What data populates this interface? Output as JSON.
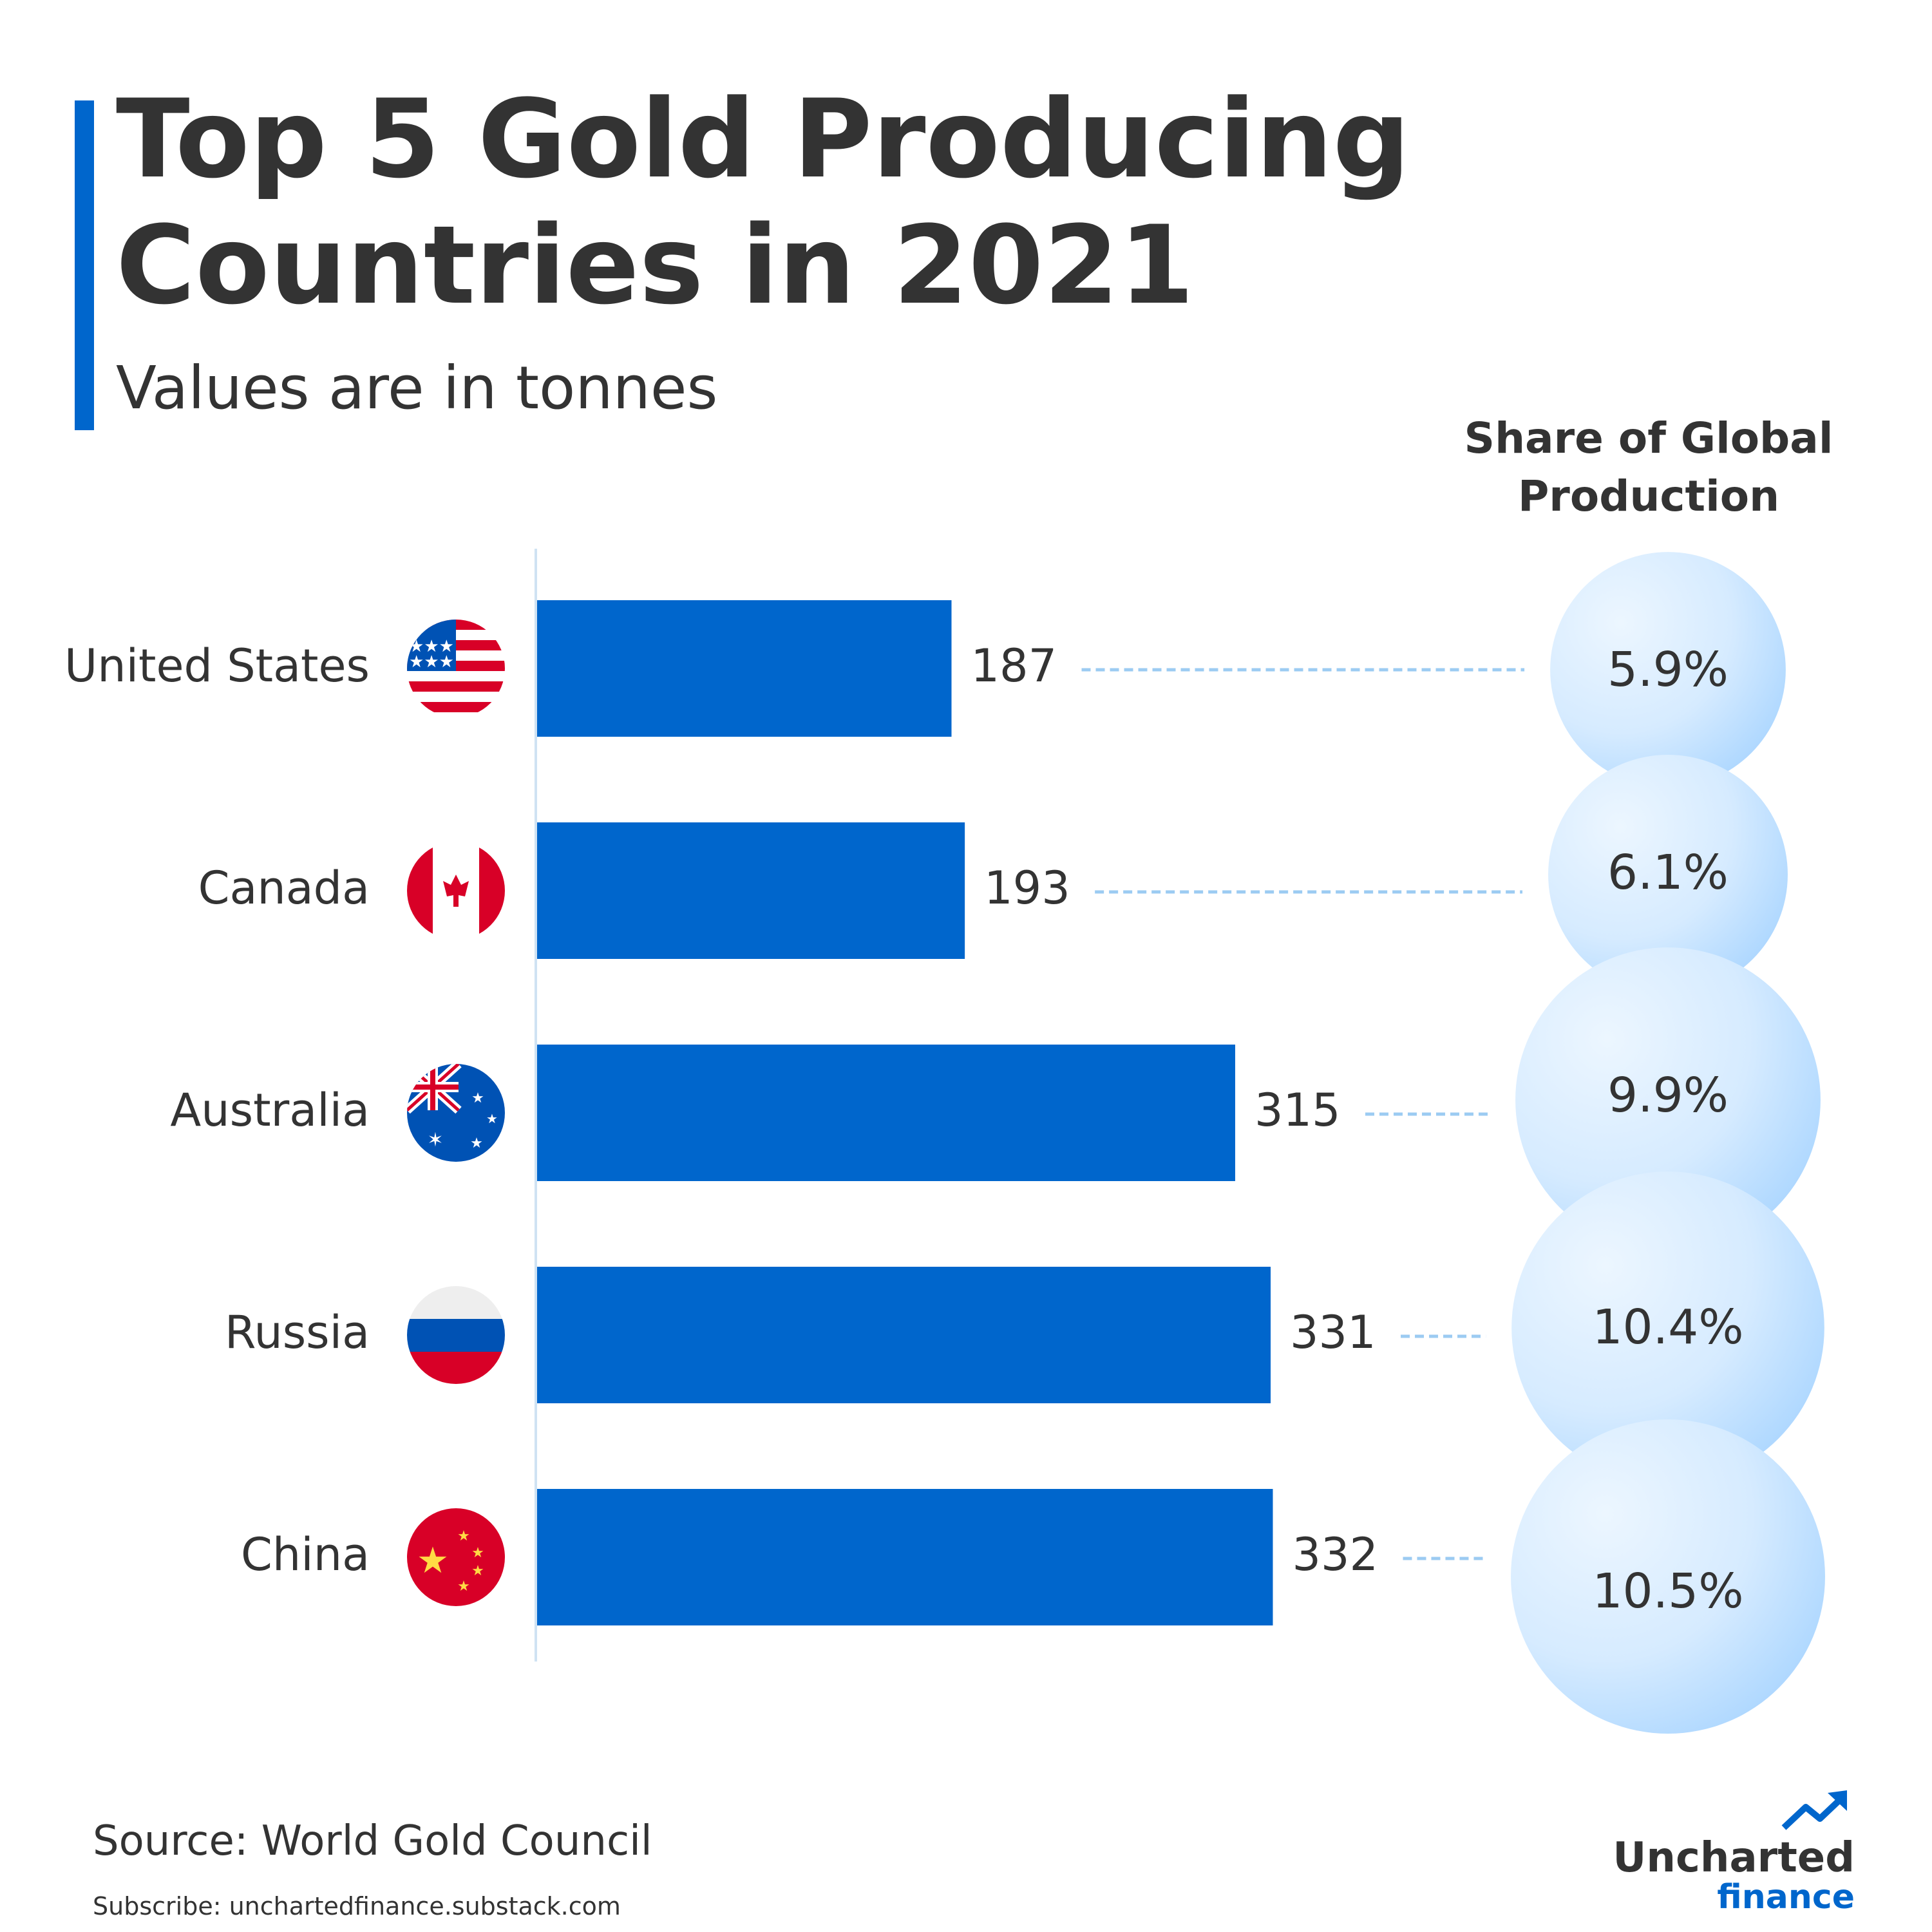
{
  "header": {
    "title": "Top 5 Gold Producing Countries in 2021",
    "subtitle": "Values are in tonnes"
  },
  "share_header": "Share of Global Production",
  "colors": {
    "accent": "#0066cc",
    "bar": "#0066cc",
    "text": "#333333",
    "axis": "#cfe2f3",
    "dash": "#9ccbf2",
    "bubble_light": "#ecf6ff",
    "bubble_dark": "#a7d4ff"
  },
  "chart_data": {
    "type": "bar",
    "orientation": "horizontal",
    "title": "Top 5 Gold Producing Countries in 2021",
    "subtitle": "Values are in tonnes",
    "categories": [
      "United States",
      "Canada",
      "Australia",
      "Russia",
      "China"
    ],
    "flag_icons": [
      "us-flag-icon",
      "canada-flag-icon",
      "australia-flag-icon",
      "russia-flag-icon",
      "china-flag-icon"
    ],
    "values": [
      187,
      193,
      315,
      331,
      332
    ],
    "value_labels": [
      "187",
      "193",
      "315",
      "331",
      "332"
    ],
    "share_of_global_production": [
      "5.9%",
      "6.1%",
      "9.9%",
      "10.4%",
      "10.5%"
    ],
    "share_values": [
      5.9,
      6.1,
      9.9,
      10.4,
      10.5
    ],
    "xlim": [
      0,
      340
    ],
    "grid": false,
    "legend": "none"
  },
  "footer": {
    "source": "Source: World Gold Council",
    "subscribe": "Subscribe: unchartedfinance.substack.com"
  },
  "logo": {
    "top": "Uncharted",
    "bottom": "finance",
    "icon": "trend-arrow-icon"
  }
}
